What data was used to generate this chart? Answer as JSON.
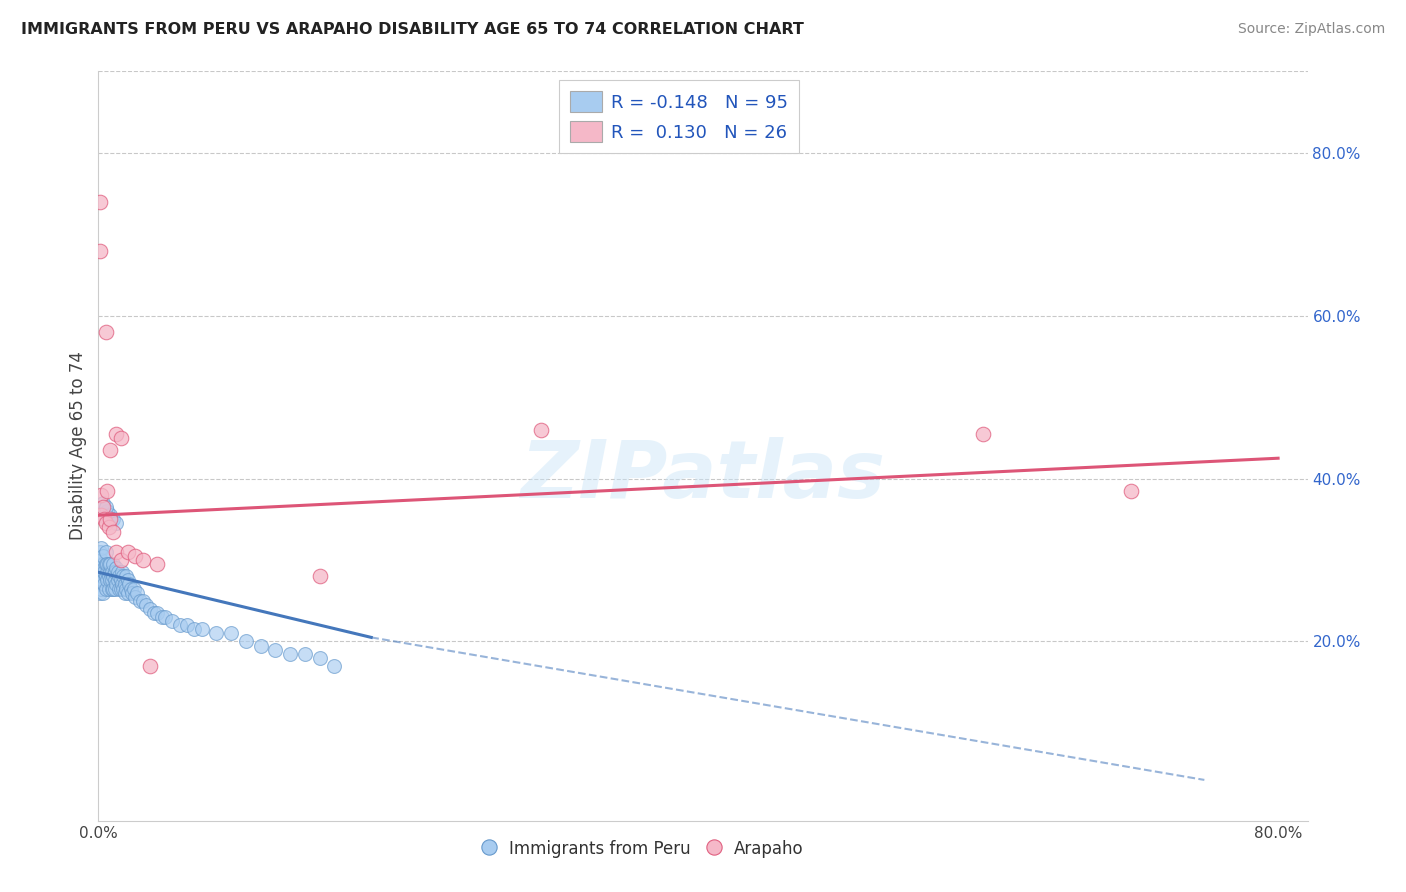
{
  "title": "IMMIGRANTS FROM PERU VS ARAPAHO DISABILITY AGE 65 TO 74 CORRELATION CHART",
  "source": "Source: ZipAtlas.com",
  "ylabel": "Disability Age 65 to 74",
  "xlim": [
    0.0,
    0.82
  ],
  "ylim": [
    -0.02,
    0.9
  ],
  "xtick_positions": [
    0.0,
    0.8
  ],
  "xticklabels": [
    "0.0%",
    "80.0%"
  ],
  "yticks_right": [
    0.2,
    0.4,
    0.6,
    0.8
  ],
  "ytick_labels_right": [
    "20.0%",
    "40.0%",
    "60.0%",
    "80.0%"
  ],
  "blue_R": -0.148,
  "blue_N": 95,
  "pink_R": 0.13,
  "pink_N": 26,
  "blue_color": "#A8CCF0",
  "pink_color": "#F5B8C8",
  "blue_edge_color": "#6699CC",
  "pink_edge_color": "#E06080",
  "blue_line_color": "#4477BB",
  "pink_line_color": "#DD5577",
  "blue_line_solid_end": 0.185,
  "blue_line_start_y": 0.285,
  "blue_line_end_y_solid": 0.205,
  "blue_line_end_y_dashed": 0.03,
  "pink_line_start_y": 0.355,
  "pink_line_end_y": 0.425,
  "blue_scatter_x": [
    0.001,
    0.001,
    0.001,
    0.001,
    0.001,
    0.002,
    0.002,
    0.002,
    0.002,
    0.002,
    0.002,
    0.003,
    0.003,
    0.003,
    0.003,
    0.003,
    0.004,
    0.004,
    0.004,
    0.005,
    0.005,
    0.005,
    0.005,
    0.006,
    0.006,
    0.006,
    0.007,
    0.007,
    0.007,
    0.008,
    0.008,
    0.008,
    0.009,
    0.009,
    0.009,
    0.01,
    0.01,
    0.01,
    0.011,
    0.011,
    0.011,
    0.012,
    0.012,
    0.013,
    0.013,
    0.014,
    0.014,
    0.015,
    0.015,
    0.016,
    0.016,
    0.017,
    0.017,
    0.018,
    0.018,
    0.019,
    0.019,
    0.02,
    0.02,
    0.021,
    0.022,
    0.023,
    0.024,
    0.025,
    0.026,
    0.028,
    0.03,
    0.032,
    0.035,
    0.038,
    0.04,
    0.043,
    0.045,
    0.05,
    0.055,
    0.06,
    0.065,
    0.07,
    0.08,
    0.09,
    0.1,
    0.11,
    0.12,
    0.13,
    0.14,
    0.15,
    0.16,
    0.004,
    0.006,
    0.007,
    0.008,
    0.01,
    0.012,
    0.003,
    0.005
  ],
  "blue_scatter_y": [
    0.295,
    0.31,
    0.26,
    0.285,
    0.275,
    0.3,
    0.315,
    0.27,
    0.29,
    0.28,
    0.265,
    0.295,
    0.285,
    0.275,
    0.305,
    0.26,
    0.29,
    0.285,
    0.27,
    0.295,
    0.28,
    0.265,
    0.31,
    0.285,
    0.275,
    0.295,
    0.28,
    0.295,
    0.265,
    0.285,
    0.275,
    0.295,
    0.265,
    0.285,
    0.275,
    0.28,
    0.265,
    0.295,
    0.275,
    0.285,
    0.265,
    0.29,
    0.27,
    0.285,
    0.275,
    0.28,
    0.265,
    0.275,
    0.265,
    0.285,
    0.27,
    0.28,
    0.265,
    0.27,
    0.26,
    0.28,
    0.265,
    0.275,
    0.26,
    0.27,
    0.265,
    0.26,
    0.265,
    0.255,
    0.26,
    0.25,
    0.25,
    0.245,
    0.24,
    0.235,
    0.235,
    0.23,
    0.23,
    0.225,
    0.22,
    0.22,
    0.215,
    0.215,
    0.21,
    0.21,
    0.2,
    0.195,
    0.19,
    0.185,
    0.185,
    0.18,
    0.17,
    0.355,
    0.36,
    0.35,
    0.355,
    0.35,
    0.345,
    0.37,
    0.365
  ],
  "pink_scatter_x": [
    0.001,
    0.001,
    0.002,
    0.002,
    0.003,
    0.004,
    0.005,
    0.006,
    0.007,
    0.008,
    0.01,
    0.012,
    0.015,
    0.02,
    0.025,
    0.03,
    0.035,
    0.012,
    0.015,
    0.008,
    0.3,
    0.6,
    0.7,
    0.15,
    0.005,
    0.04
  ],
  "pink_scatter_y": [
    0.74,
    0.68,
    0.38,
    0.355,
    0.365,
    0.35,
    0.345,
    0.385,
    0.34,
    0.35,
    0.335,
    0.31,
    0.3,
    0.31,
    0.305,
    0.3,
    0.17,
    0.455,
    0.45,
    0.435,
    0.46,
    0.455,
    0.385,
    0.28,
    0.58,
    0.295
  ],
  "watermark_text": "ZIPatlas",
  "legend_label_blue": "R = -0.148   N = 95",
  "legend_label_pink": "R =  0.130   N = 26"
}
